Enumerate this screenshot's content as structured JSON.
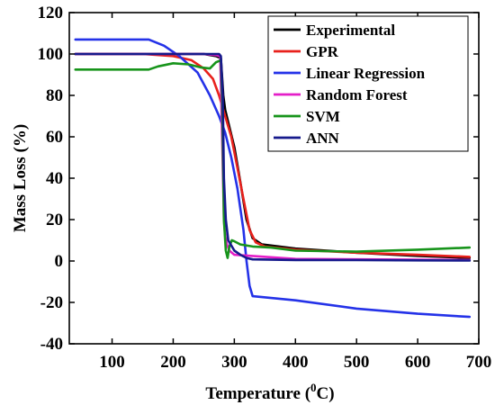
{
  "chart_data": {
    "type": "line",
    "title": "",
    "xlabel": "Temperature (",
    "xlabel_super": "0",
    "xlabel_end": "C)",
    "ylabel": "Mass Loss (%)",
    "xlim": [
      30,
      700
    ],
    "ylim": [
      -40,
      120
    ],
    "xticks": [
      100,
      200,
      300,
      400,
      500,
      600,
      700
    ],
    "yticks": [
      -40,
      -20,
      0,
      20,
      40,
      60,
      80,
      100,
      120
    ],
    "grid": false,
    "legend_position": "top-right",
    "series": [
      {
        "name": "Experimental",
        "color": "#000000",
        "x": [
          40,
          150,
          250,
          270,
          278,
          282,
          285,
          290,
          300,
          310,
          320,
          330,
          345,
          400,
          500,
          600,
          685
        ],
        "y": [
          100,
          100,
          100,
          99,
          98,
          80,
          73,
          67,
          55,
          38,
          20,
          11,
          8,
          6,
          4,
          2.5,
          1.5
        ]
      },
      {
        "name": "GPR",
        "color": "#e8211c",
        "x": [
          40,
          150,
          200,
          230,
          250,
          265,
          275,
          285,
          295,
          305,
          315,
          325,
          335,
          350,
          400,
          500,
          600,
          685
        ],
        "y": [
          100,
          100,
          99,
          97,
          93,
          88,
          80,
          70,
          60,
          45,
          30,
          15,
          9,
          7,
          5.5,
          4,
          3,
          2
        ]
      },
      {
        "name": "Linear Regression",
        "color": "#2432e8",
        "x": [
          40,
          160,
          185,
          210,
          240,
          260,
          275,
          285,
          295,
          305,
          315,
          320,
          325,
          330,
          400,
          500,
          600,
          685
        ],
        "y": [
          107,
          107,
          104,
          99,
          91,
          80,
          70,
          62,
          50,
          35,
          15,
          0,
          -12,
          -17,
          -19,
          -23,
          -25.5,
          -27
        ]
      },
      {
        "name": "Random Forest",
        "color": "#e41ec8",
        "x": [
          40,
          150,
          250,
          270,
          277,
          280,
          283,
          285,
          288,
          292,
          300,
          400,
          685
        ],
        "y": [
          100,
          100,
          100,
          99.5,
          99,
          60,
          20,
          12,
          8,
          5,
          3,
          1,
          0.5
        ]
      },
      {
        "name": "SVM",
        "color": "#17941b",
        "x": [
          40,
          160,
          175,
          200,
          225,
          245,
          260,
          270,
          278,
          280,
          283,
          286,
          289,
          292,
          296,
          300,
          310,
          330,
          360,
          400,
          500,
          600,
          685
        ],
        "y": [
          92.5,
          92.5,
          94,
          95.5,
          95,
          93.5,
          93,
          96,
          97,
          80,
          20,
          5,
          1.5,
          7,
          10,
          9.5,
          8,
          7,
          6.5,
          5,
          4.5,
          5.5,
          6.5
        ]
      },
      {
        "name": "ANN",
        "color": "#161a8c",
        "x": [
          40,
          150,
          250,
          275,
          278,
          281,
          283,
          286,
          290,
          300,
          310,
          320,
          330,
          400,
          500,
          600,
          685
        ],
        "y": [
          100,
          100,
          100,
          100,
          99,
          80,
          40,
          20,
          10,
          5,
          3,
          1.5,
          0.8,
          0.5,
          0.5,
          0.3,
          0.2
        ]
      }
    ]
  }
}
